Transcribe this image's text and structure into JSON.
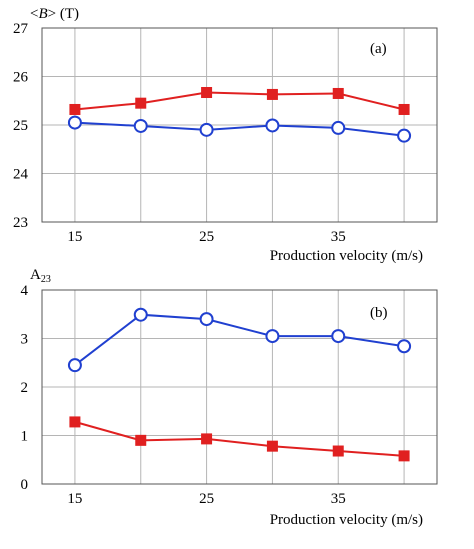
{
  "chart_data": [
    {
      "type": "line",
      "panel_label": "(a)",
      "ylabel_italic": "B",
      "ylabel_unit": "(T)",
      "xlabel": "Production velocity (m/s)",
      "x": [
        15,
        20,
        25,
        30,
        35,
        40
      ],
      "xticks": [
        "15",
        "25",
        "35"
      ],
      "xlim": [
        12.5,
        42.5
      ],
      "ylim": [
        23,
        27
      ],
      "yticks": [
        "23",
        "24",
        "25",
        "26",
        "27"
      ],
      "grid": true,
      "series": [
        {
          "color": "#e02020",
          "marker": "square",
          "values": [
            25.32,
            25.45,
            25.67,
            25.63,
            25.65,
            25.32
          ]
        },
        {
          "color": "#2040d0",
          "marker": "circle",
          "values": [
            25.05,
            24.98,
            24.9,
            24.99,
            24.94,
            24.78
          ]
        }
      ]
    },
    {
      "type": "line",
      "panel_label": "(b)",
      "ylabel_main": "A",
      "ylabel_sub": "23",
      "xlabel": "Production velocity (m/s)",
      "x": [
        15,
        20,
        25,
        30,
        35,
        40
      ],
      "xticks": [
        "15",
        "25",
        "35"
      ],
      "xlim": [
        12.5,
        42.5
      ],
      "ylim": [
        0,
        4
      ],
      "yticks": [
        "0",
        "1",
        "2",
        "3",
        "4"
      ],
      "grid": true,
      "series": [
        {
          "color": "#2040d0",
          "marker": "circle",
          "values": [
            2.45,
            3.49,
            3.4,
            3.05,
            3.05,
            2.84
          ]
        },
        {
          "color": "#e02020",
          "marker": "square",
          "values": [
            1.28,
            0.9,
            0.93,
            0.78,
            0.68,
            0.58
          ]
        }
      ]
    }
  ]
}
